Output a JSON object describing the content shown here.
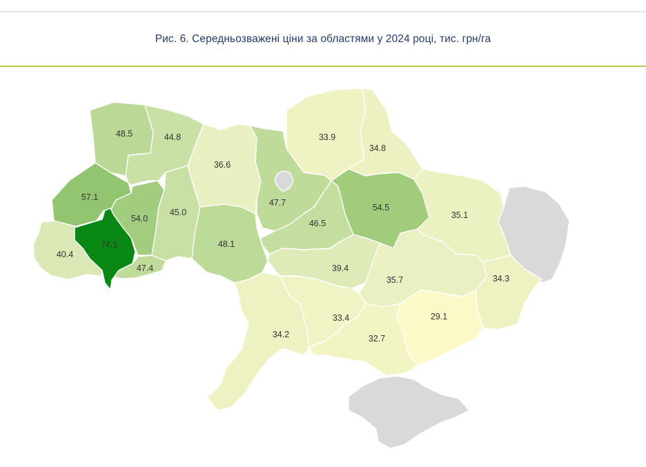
{
  "caption": "Рис. 6. Середньозважені ціни за областями у 2024 році, тис. грн/га",
  "colors": {
    "accent_rule": "#b5c94b",
    "no_data": "#d9d9d9",
    "scale_low": "#fbf8c8",
    "scale_high": "#0b8a17"
  },
  "map_data": {
    "type": "choropleth",
    "unit": "тис. грн/га",
    "regions": [
      {
        "key": "volyn",
        "value": "48.5"
      },
      {
        "key": "rivne",
        "value": "44.8"
      },
      {
        "key": "zhytomyr",
        "value": "36.6"
      },
      {
        "key": "kyiv",
        "value": "47.7"
      },
      {
        "key": "chernihiv",
        "value": "33.9"
      },
      {
        "key": "sumy",
        "value": "34.8"
      },
      {
        "key": "lviv",
        "value": "57.1"
      },
      {
        "key": "ternopil",
        "value": "54.0"
      },
      {
        "key": "khmelnytskyi",
        "value": "45.0"
      },
      {
        "key": "cherkasy",
        "value": "46.5"
      },
      {
        "key": "poltava",
        "value": "54.5"
      },
      {
        "key": "kharkiv",
        "value": "35.1"
      },
      {
        "key": "ivano_frankivsk",
        "value": "74.3"
      },
      {
        "key": "zakarpattia",
        "value": "40.4"
      },
      {
        "key": "chernivtsi",
        "value": "47.4"
      },
      {
        "key": "vinnytsia",
        "value": "48.1"
      },
      {
        "key": "kirovohrad",
        "value": "39.4"
      },
      {
        "key": "dnipropetrovsk",
        "value": "35.7"
      },
      {
        "key": "donetsk",
        "value": "34.3"
      },
      {
        "key": "zaporizhzhia",
        "value": "29.1"
      },
      {
        "key": "mykolaiv",
        "value": "33.4"
      },
      {
        "key": "odesa",
        "value": "34.2"
      },
      {
        "key": "kherson",
        "value": "32.7"
      },
      {
        "key": "kyiv_city",
        "value": null
      },
      {
        "key": "luhansk",
        "value": null
      },
      {
        "key": "crimea",
        "value": null
      }
    ]
  }
}
